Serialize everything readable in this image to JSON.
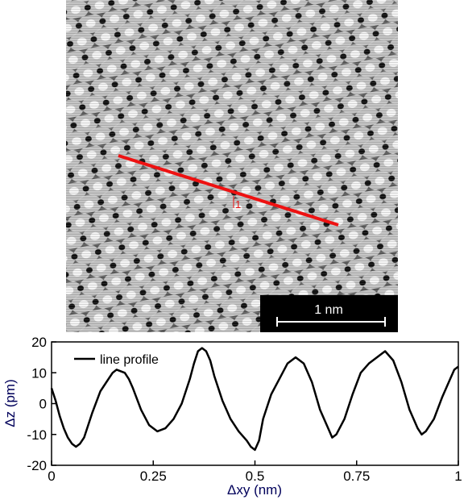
{
  "stm_image": {
    "scale_bar_label": "1 nm",
    "line_marker_label": "1",
    "line_color": "#ee1111"
  },
  "chart_data": {
    "type": "line",
    "xlabel": "Δxy (nm)",
    "ylabel": "Δz (pm)",
    "xlim": [
      0,
      1
    ],
    "ylim": [
      -20,
      20
    ],
    "x_ticks": [
      0,
      0.25,
      0.5,
      0.75,
      1
    ],
    "x_tick_labels": [
      "0",
      "0.25",
      "0.5",
      "0.75",
      "1"
    ],
    "y_ticks": [
      -20,
      -10,
      0,
      10,
      20
    ],
    "y_tick_labels": [
      "-20",
      "-10",
      "0",
      "10",
      "20"
    ],
    "grid": false,
    "legend_position": "top-left",
    "series": [
      {
        "name": "line profile",
        "color": "#000000",
        "x": [
          0,
          0.01,
          0.02,
          0.03,
          0.04,
          0.05,
          0.06,
          0.07,
          0.08,
          0.1,
          0.12,
          0.14,
          0.15,
          0.16,
          0.18,
          0.19,
          0.2,
          0.22,
          0.24,
          0.26,
          0.28,
          0.3,
          0.32,
          0.34,
          0.35,
          0.36,
          0.37,
          0.38,
          0.39,
          0.4,
          0.42,
          0.44,
          0.46,
          0.48,
          0.49,
          0.5,
          0.51,
          0.52,
          0.54,
          0.56,
          0.58,
          0.6,
          0.62,
          0.64,
          0.66,
          0.68,
          0.69,
          0.7,
          0.72,
          0.74,
          0.76,
          0.78,
          0.8,
          0.81,
          0.82,
          0.84,
          0.86,
          0.88,
          0.9,
          0.91,
          0.92,
          0.94,
          0.96,
          0.98,
          0.99,
          1.0
        ],
        "values": [
          5,
          1,
          -4,
          -8,
          -11,
          -13,
          -14,
          -13,
          -11,
          -3,
          4,
          8,
          10,
          11,
          10,
          8,
          5,
          -2,
          -7,
          -9,
          -8,
          -5,
          0,
          8,
          13,
          17,
          18,
          17,
          14,
          9,
          1,
          -5,
          -9,
          -12,
          -14,
          -15,
          -12,
          -5,
          3,
          8,
          13,
          15,
          13,
          7,
          -2,
          -8,
          -11,
          -10,
          -5,
          3,
          10,
          13,
          15,
          16,
          17,
          14,
          7,
          -2,
          -8,
          -10,
          -9,
          -5,
          2,
          8,
          11,
          12
        ]
      }
    ]
  }
}
